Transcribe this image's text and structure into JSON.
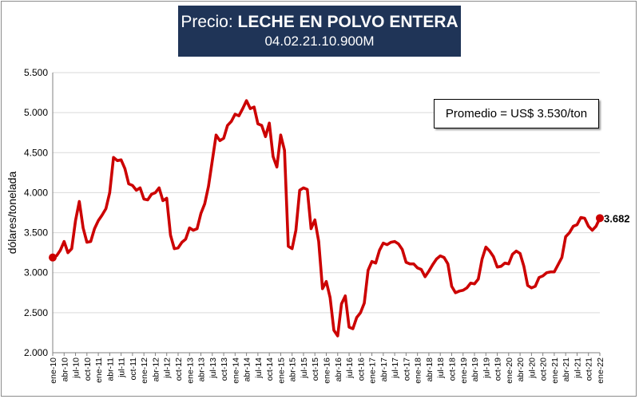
{
  "title": {
    "prefix": "Precio: ",
    "product": "LECHE EN POLVO ENTERA",
    "code": "04.02.21.10.900M"
  },
  "annotation": {
    "average_label": "Promedio = US$ 3.530/ton"
  },
  "colors": {
    "line": "#cc0000",
    "title_bg": "#1f3457",
    "grid": "#d9d9d9"
  },
  "chart_data": {
    "type": "line",
    "ylabel": "dólares/tonelada",
    "ylim": [
      2000,
      5500
    ],
    "yticks": [
      2000,
      2500,
      3000,
      3500,
      4000,
      4500,
      5000,
      5500
    ],
    "ytick_labels": [
      "2.000",
      "2.500",
      "3.000",
      "3.500",
      "4.000",
      "4.500",
      "5.000",
      "5.500"
    ],
    "x_start": "ene-10",
    "x_end": "ene-22",
    "xtick_labels": [
      "ene-10",
      "abr-10",
      "jul-10",
      "oct-10",
      "ene-11",
      "abr-11",
      "jul-11",
      "oct-11",
      "ene-12",
      "abr-12",
      "jul-12",
      "oct-12",
      "ene-13",
      "abr-13",
      "jul-13",
      "oct-13",
      "ene-14",
      "abr-14",
      "jul-14",
      "oct-14",
      "ene-15",
      "abr-15",
      "jul-15",
      "oct-15",
      "ene-16",
      "abr-16",
      "jul-16",
      "oct-16",
      "ene-17",
      "abr-17",
      "jul-17",
      "oct-17",
      "ene-18",
      "abr-18",
      "jul-18",
      "oct-18",
      "ene-19",
      "abr-19",
      "jul-19",
      "oct-19",
      "ene-20",
      "abr-20",
      "jul-20",
      "oct-20",
      "ene-21",
      "abr-21",
      "jul-21",
      "oct-21",
      "ene-22"
    ],
    "grid": true,
    "last_value_label": "3.682",
    "series": [
      {
        "values": [
          3190,
          3210,
          3280,
          3390,
          3250,
          3300,
          3650,
          3890,
          3560,
          3380,
          3390,
          3550,
          3650,
          3720,
          3800,
          4000,
          4440,
          4400,
          4410,
          4300,
          4110,
          4090,
          4030,
          4060,
          3920,
          3910,
          3980,
          4000,
          4060,
          3900,
          3930,
          3470,
          3300,
          3310,
          3380,
          3420,
          3560,
          3530,
          3550,
          3740,
          3860,
          4080,
          4400,
          4720,
          4650,
          4680,
          4840,
          4890,
          4980,
          4960,
          5050,
          5150,
          5050,
          5070,
          4860,
          4840,
          4700,
          4870,
          4450,
          4320,
          4720,
          4530,
          3330,
          3300,
          3530,
          4030,
          4060,
          4040,
          3550,
          3660,
          3390,
          2800,
          2890,
          2690,
          2280,
          2210,
          2610,
          2710,
          2320,
          2300,
          2440,
          2500,
          2620,
          3030,
          3140,
          3120,
          3280,
          3370,
          3350,
          3380,
          3390,
          3360,
          3290,
          3130,
          3110,
          3110,
          3060,
          3040,
          2950,
          3020,
          3100,
          3170,
          3210,
          3190,
          3110,
          2830,
          2750,
          2770,
          2780,
          2810,
          2870,
          2860,
          2920,
          3170,
          3320,
          3270,
          3200,
          3070,
          3080,
          3120,
          3110,
          3230,
          3270,
          3240,
          3080,
          2840,
          2810,
          2830,
          2940,
          2960,
          3000,
          3010,
          3010,
          3100,
          3190,
          3450,
          3500,
          3580,
          3600,
          3690,
          3680,
          3580,
          3530,
          3580,
          3682
        ]
      }
    ]
  }
}
